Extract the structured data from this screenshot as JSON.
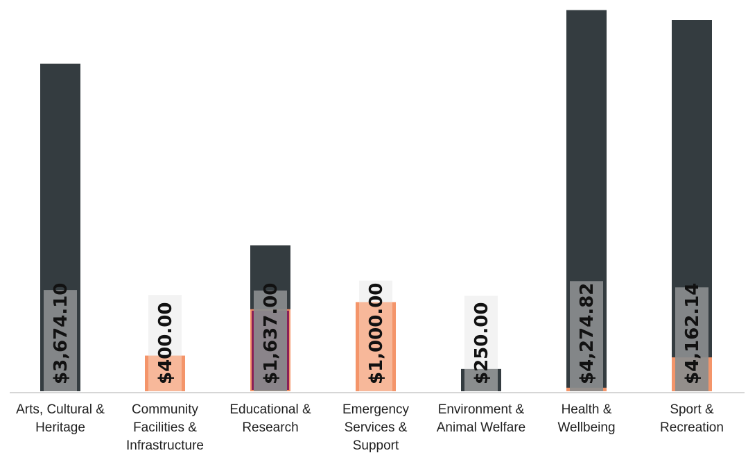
{
  "chart_data": {
    "type": "bar",
    "title": "",
    "xlabel": "",
    "ylabel": "",
    "categories": [
      [
        "Arts, Cultural &",
        "Heritage"
      ],
      [
        "Community",
        "Facilities &",
        "Infrastructure"
      ],
      [
        "Educational &",
        "Research"
      ],
      [
        "Emergency",
        "Services &",
        "Support"
      ],
      [
        "Environment &",
        "Animal Welfare"
      ],
      [
        "Health &",
        "Wellbeing"
      ],
      [
        "Sport &",
        "Recreation"
      ]
    ],
    "series": [
      {
        "values": [
          3674.1,
          0,
          1637.0,
          0,
          250.0,
          4274.82,
          4162.14
        ],
        "color": "#343c40"
      },
      {
        "values": [
          0,
          400.0,
          920,
          1000.0,
          0,
          40,
          380
        ],
        "color": "#f4956a"
      }
    ],
    "highlight": {
      "category_index": 2,
      "color": "#8a1f57",
      "value": 920
    },
    "data_labels": [
      "$3,674.10",
      "$400.00",
      "$1,637.00",
      "$1,000.00",
      "$250.00",
      "$4,274.82",
      "$4,162.14"
    ],
    "data_label_box_height": [
      1135,
      1080,
      1130,
      1240,
      1070,
      1235,
      1165
    ],
    "ylim": [
      0,
      4310
    ],
    "grid": false,
    "legend": "none",
    "colors": {
      "axis": "#c8c8c8",
      "label_box_dark": "#8a8d8e",
      "label_box_light": "#f2f2f2",
      "label_box_on_orange": "#f7b89a"
    }
  }
}
